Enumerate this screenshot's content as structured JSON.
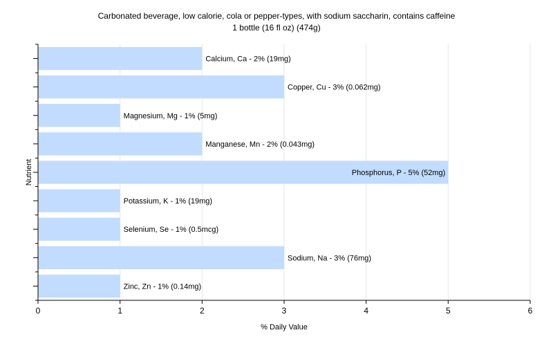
{
  "chart_data": {
    "type": "bar",
    "orientation": "horizontal",
    "title": "Carbonated beverage, low calorie, cola or pepper-types, with sodium saccharin, contains caffeine",
    "subtitle": "1 bottle (16 fl oz) (474g)",
    "xlabel": "% Daily Value",
    "ylabel": "Nutrient",
    "xlim": [
      0,
      6
    ],
    "xticks": [
      0,
      1,
      2,
      3,
      4,
      5,
      6
    ],
    "grid": true,
    "bar_color": "#c2dcff",
    "categories": [
      "Calcium, Ca",
      "Copper, Cu",
      "Magnesium, Mg",
      "Manganese, Mn",
      "Phosphorus, P",
      "Potassium, K",
      "Selenium, Se",
      "Sodium, Na",
      "Zinc, Zn"
    ],
    "values": [
      2,
      3,
      1,
      2,
      5,
      1,
      1,
      3,
      1
    ],
    "labels": [
      "Calcium, Ca - 2% (19mg)",
      "Copper, Cu - 3% (0.062mg)",
      "Magnesium, Mg - 1% (5mg)",
      "Manganese, Mn - 2% (0.043mg)",
      "Phosphorus, P - 5% (52mg)",
      "Potassium, K - 1% (19mg)",
      "Selenium, Se - 1% (0.5mcg)",
      "Sodium, Na - 3% (76mg)",
      "Zinc, Zn - 1% (0.14mg)"
    ]
  }
}
